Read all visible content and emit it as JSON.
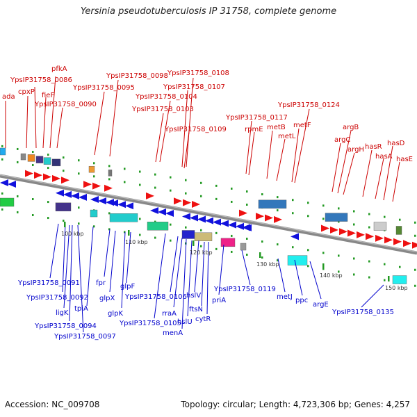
{
  "title": "Yersinia pseudotuberculosis IP 31758, complete genome",
  "footer": {
    "accession": "Accession: NC_009708",
    "summary": "Topology: circular; Length: 4,723,306 bp; Genes: 4,257"
  },
  "colors": {
    "upper_labels": "#cc0000",
    "lower_labels": "#0000cc",
    "forward_arrows": "#ee1111",
    "reverse_arrows": "#1111dd",
    "backbone": "#888888",
    "ticks": "#229922"
  },
  "scale_labels": [
    "100 kbp",
    "110 kbp",
    "120 kbp",
    "130 kbp",
    "140 kbp",
    "150 kbp"
  ],
  "upper_genes": [
    "ada",
    "cpxP",
    "fieF",
    "pfkA",
    "YpsIP31758_0086",
    "YpsIP31758_0090",
    "YpsIP31758_0095",
    "YpsIP31758_0098",
    "YpsIP31758_0103",
    "YpsIP31758_0104",
    "YpsIP31758_0107",
    "YpsIP31758_0108",
    "YpsIP31758_0109",
    "YpsIP31758_0117",
    "rpmE",
    "metB",
    "metL",
    "metF",
    "YpsIP31758_0124",
    "argC",
    "argB",
    "argH",
    "hasR",
    "hasA",
    "hasD",
    "hasE"
  ],
  "lower_genes": [
    "YpsIP31758_0091",
    "YpsIP31758_0092",
    "ligK",
    "YpsIP31758_0094",
    "tpiA",
    "YpsIP31758_0097",
    "fpr",
    "glpX",
    "glpF",
    "glpK",
    "YpsIP31758_0105",
    "YpsIP31758_0106",
    "rraA",
    "menA",
    "hslU",
    "hslV",
    "ftsN",
    "cytR",
    "priA",
    "YpsIP31758_0119",
    "metJ",
    "ppc",
    "argE",
    "YpsIP31758_0135"
  ]
}
